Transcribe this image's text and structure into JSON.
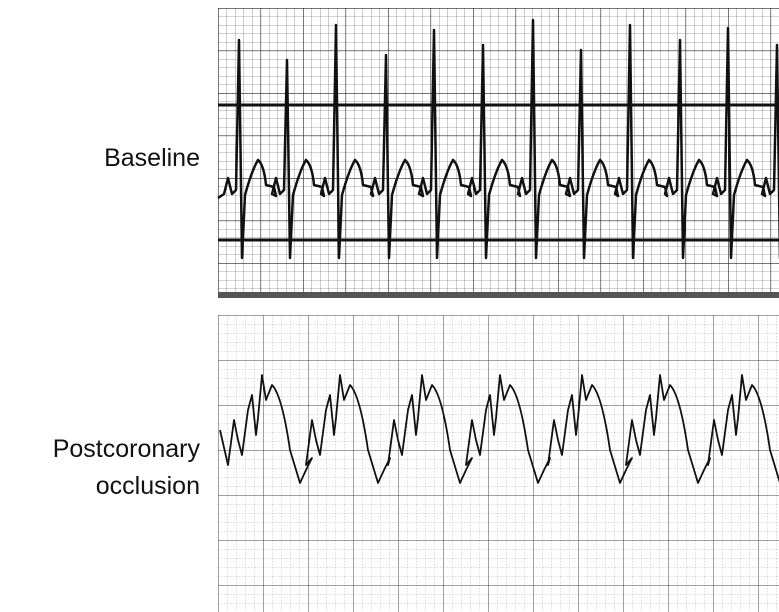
{
  "panels": [
    {
      "label_lines": [
        "Baseline"
      ]
    },
    {
      "label_lines": [
        "Postcoronary",
        "occlusion"
      ]
    }
  ]
}
